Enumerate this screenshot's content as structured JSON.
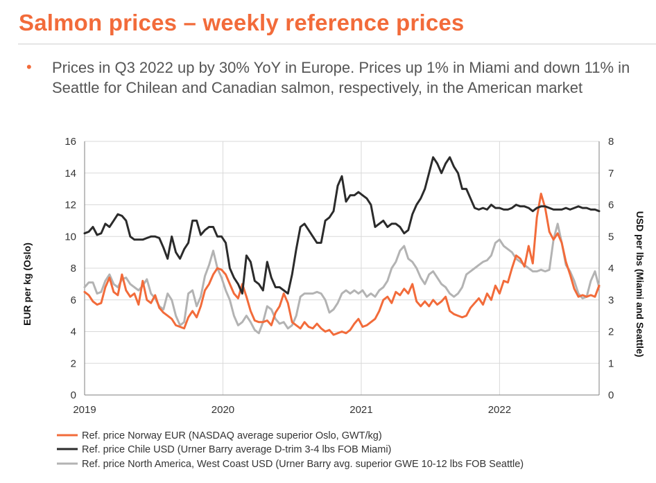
{
  "title": "Salmon prices – weekly reference prices",
  "bullet": "Prices in Q3 2022 up by 30% YoY in Europe. Prices up 1% in Miami and down 11% in Seattle for Chilean and Canadian salmon, respectively, in the American market",
  "colors": {
    "accent": "#f26b3a",
    "text": "#555555"
  },
  "chart_data": {
    "type": "line",
    "xlabel": "",
    "ylabel": "EUR per kg (Oslo)",
    "y2label": "USD per lbs (Miami and Seattle)",
    "xlim": [
      2019.0,
      2022.72
    ],
    "ylim": [
      0,
      16
    ],
    "y2lim": [
      0,
      8
    ],
    "x_ticks": [
      2019,
      2020,
      2021,
      2022
    ],
    "y_ticks": [
      0,
      2,
      4,
      6,
      8,
      10,
      12,
      14,
      16
    ],
    "y2_ticks": [
      0,
      1,
      2,
      3,
      4,
      5,
      6,
      7,
      8
    ],
    "grid": true,
    "legend_position": "bottom",
    "series": [
      {
        "name": "Ref. price Norway EUR (NASDAQ average superior Oslo, GWT/kg)",
        "axis": "left",
        "color": "#f26b3a",
        "x": [
          2019.0,
          2019.03,
          2019.06,
          2019.09,
          2019.12,
          2019.15,
          2019.18,
          2019.21,
          2019.24,
          2019.27,
          2019.3,
          2019.33,
          2019.36,
          2019.39,
          2019.42,
          2019.45,
          2019.48,
          2019.51,
          2019.54,
          2019.57,
          2019.6,
          2019.63,
          2019.66,
          2019.69,
          2019.72,
          2019.75,
          2019.78,
          2019.81,
          2019.84,
          2019.87,
          2019.9,
          2019.93,
          2019.96,
          2019.99,
          2020.02,
          2020.05,
          2020.08,
          2020.11,
          2020.14,
          2020.17,
          2020.2,
          2020.23,
          2020.26,
          2020.29,
          2020.32,
          2020.35,
          2020.38,
          2020.41,
          2020.44,
          2020.47,
          2020.5,
          2020.53,
          2020.56,
          2020.59,
          2020.62,
          2020.65,
          2020.68,
          2020.71,
          2020.74,
          2020.77,
          2020.8,
          2020.83,
          2020.86,
          2020.89,
          2020.92,
          2020.95,
          2020.98,
          2021.01,
          2021.04,
          2021.07,
          2021.1,
          2021.13,
          2021.16,
          2021.19,
          2021.22,
          2021.25,
          2021.28,
          2021.31,
          2021.34,
          2021.37,
          2021.4,
          2021.43,
          2021.46,
          2021.49,
          2021.52,
          2021.55,
          2021.58,
          2021.61,
          2021.64,
          2021.67,
          2021.7,
          2021.73,
          2021.76,
          2021.79,
          2021.82,
          2021.85,
          2021.88,
          2021.91,
          2021.94,
          2021.97,
          2022.0,
          2022.03,
          2022.06,
          2022.09,
          2022.12,
          2022.15,
          2022.18,
          2022.21,
          2022.24,
          2022.27,
          2022.3,
          2022.33,
          2022.36,
          2022.39,
          2022.42,
          2022.45,
          2022.48,
          2022.51,
          2022.54,
          2022.57,
          2022.6,
          2022.63,
          2022.66,
          2022.69,
          2022.72
        ],
        "values": [
          6.5,
          6.3,
          5.9,
          5.7,
          5.8,
          6.8,
          7.4,
          6.5,
          6.3,
          7.6,
          6.6,
          6.2,
          6.4,
          5.7,
          7.2,
          6.0,
          5.8,
          6.3,
          5.5,
          5.2,
          5.0,
          4.8,
          4.4,
          4.3,
          4.2,
          4.9,
          5.3,
          4.9,
          5.6,
          6.6,
          7.0,
          7.6,
          8.0,
          7.9,
          7.6,
          7.0,
          6.4,
          6.1,
          7.0,
          6.2,
          5.3,
          4.7,
          4.6,
          4.6,
          4.7,
          4.4,
          5.2,
          5.6,
          6.4,
          5.8,
          4.6,
          4.4,
          4.2,
          4.6,
          4.3,
          4.2,
          4.5,
          4.2,
          4.0,
          4.1,
          3.8,
          3.9,
          4.0,
          3.9,
          4.1,
          4.5,
          4.8,
          4.3,
          4.4,
          4.6,
          4.8,
          5.3,
          6.0,
          6.2,
          5.8,
          6.5,
          6.3,
          6.7,
          6.4,
          7.0,
          5.9,
          5.6,
          5.9,
          5.6,
          6.0,
          5.7,
          5.9,
          6.2,
          5.3,
          5.1,
          5.0,
          4.9,
          5.0,
          5.5,
          5.8,
          6.1,
          5.7,
          6.4,
          6.0,
          6.9,
          6.4,
          7.2,
          7.1,
          8.0,
          8.8,
          8.6,
          8.1,
          9.4,
          8.3,
          11.2,
          12.7,
          11.8,
          10.3,
          9.8,
          10.2,
          9.6,
          8.4,
          7.6,
          6.7,
          6.2,
          6.3,
          6.2,
          6.3,
          6.2,
          6.9
        ]
      },
      {
        "name": "Ref. price Chile USD (Urner Barry average D-trim 3-4 lbs FOB Miami)",
        "axis": "right",
        "color": "#2b2b2b",
        "x": [
          2019.0,
          2019.03,
          2019.06,
          2019.09,
          2019.12,
          2019.15,
          2019.18,
          2019.21,
          2019.24,
          2019.27,
          2019.3,
          2019.33,
          2019.36,
          2019.39,
          2019.42,
          2019.45,
          2019.48,
          2019.51,
          2019.54,
          2019.57,
          2019.6,
          2019.63,
          2019.66,
          2019.69,
          2019.72,
          2019.75,
          2019.78,
          2019.81,
          2019.84,
          2019.87,
          2019.9,
          2019.93,
          2019.96,
          2019.99,
          2020.02,
          2020.05,
          2020.08,
          2020.11,
          2020.14,
          2020.17,
          2020.2,
          2020.23,
          2020.26,
          2020.29,
          2020.32,
          2020.35,
          2020.38,
          2020.41,
          2020.44,
          2020.47,
          2020.5,
          2020.53,
          2020.56,
          2020.59,
          2020.62,
          2020.65,
          2020.68,
          2020.71,
          2020.74,
          2020.77,
          2020.8,
          2020.83,
          2020.86,
          2020.89,
          2020.92,
          2020.95,
          2020.98,
          2021.01,
          2021.04,
          2021.07,
          2021.1,
          2021.13,
          2021.16,
          2021.19,
          2021.22,
          2021.25,
          2021.28,
          2021.31,
          2021.34,
          2021.37,
          2021.4,
          2021.43,
          2021.46,
          2021.49,
          2021.52,
          2021.55,
          2021.58,
          2021.61,
          2021.64,
          2021.67,
          2021.7,
          2021.73,
          2021.76,
          2021.79,
          2021.82,
          2021.85,
          2021.88,
          2021.91,
          2021.94,
          2021.97,
          2022.0,
          2022.03,
          2022.06,
          2022.09,
          2022.12,
          2022.15,
          2022.18,
          2022.21,
          2022.24,
          2022.27,
          2022.3,
          2022.33,
          2022.36,
          2022.39,
          2022.42,
          2022.45,
          2022.48,
          2022.51,
          2022.54,
          2022.57,
          2022.6,
          2022.63,
          2022.66,
          2022.69,
          2022.72
        ],
        "values": [
          5.1,
          5.15,
          5.3,
          5.05,
          5.1,
          5.4,
          5.3,
          5.5,
          5.7,
          5.65,
          5.5,
          5.0,
          4.9,
          4.9,
          4.9,
          4.95,
          5.0,
          5.0,
          4.95,
          4.65,
          4.3,
          5.0,
          4.5,
          4.3,
          4.6,
          4.8,
          5.5,
          5.5,
          5.05,
          5.2,
          5.3,
          5.3,
          5.0,
          5.0,
          4.8,
          4.0,
          3.7,
          3.5,
          3.2,
          4.4,
          4.2,
          3.6,
          3.5,
          3.3,
          4.2,
          3.7,
          3.4,
          3.4,
          3.3,
          3.2,
          3.8,
          4.6,
          5.3,
          5.4,
          5.2,
          5.0,
          4.8,
          4.8,
          5.5,
          5.6,
          5.8,
          6.6,
          6.9,
          6.1,
          6.3,
          6.3,
          6.4,
          6.3,
          6.2,
          6.0,
          5.3,
          5.4,
          5.5,
          5.3,
          5.4,
          5.4,
          5.3,
          5.1,
          5.2,
          5.7,
          6.0,
          6.2,
          6.5,
          7.0,
          7.5,
          7.3,
          7.0,
          7.3,
          7.5,
          7.2,
          7.0,
          6.5,
          6.5,
          6.2,
          5.9,
          5.85,
          5.9,
          5.85,
          6.0,
          5.9,
          5.9,
          5.85,
          5.85,
          5.9,
          6.0,
          5.95,
          5.95,
          5.9,
          5.8,
          5.9,
          5.95,
          5.95,
          5.9,
          5.85,
          5.85,
          5.85,
          5.9,
          5.85,
          5.9,
          5.95,
          5.9,
          5.9,
          5.85,
          5.85,
          5.8
        ],
        "chile_note": ""
      },
      {
        "name": "Ref. price North America, West Coast USD (Urner Barry avg. superior GWE 10-12 lbs FOB Seattle)",
        "axis": "right",
        "color": "#b3b3b3",
        "x": [
          2019.0,
          2019.03,
          2019.06,
          2019.09,
          2019.12,
          2019.15,
          2019.18,
          2019.21,
          2019.24,
          2019.27,
          2019.3,
          2019.33,
          2019.36,
          2019.39,
          2019.42,
          2019.45,
          2019.48,
          2019.51,
          2019.54,
          2019.57,
          2019.6,
          2019.63,
          2019.66,
          2019.69,
          2019.72,
          2019.75,
          2019.78,
          2019.81,
          2019.84,
          2019.87,
          2019.9,
          2019.93,
          2019.96,
          2019.99,
          2020.02,
          2020.05,
          2020.08,
          2020.11,
          2020.14,
          2020.17,
          2020.2,
          2020.23,
          2020.26,
          2020.29,
          2020.32,
          2020.35,
          2020.38,
          2020.41,
          2020.44,
          2020.47,
          2020.5,
          2020.53,
          2020.56,
          2020.59,
          2020.62,
          2020.65,
          2020.68,
          2020.71,
          2020.74,
          2020.77,
          2020.8,
          2020.83,
          2020.86,
          2020.89,
          2020.92,
          2020.95,
          2020.98,
          2021.01,
          2021.04,
          2021.07,
          2021.1,
          2021.13,
          2021.16,
          2021.19,
          2021.22,
          2021.25,
          2021.28,
          2021.31,
          2021.34,
          2021.37,
          2021.4,
          2021.43,
          2021.46,
          2021.49,
          2021.52,
          2021.55,
          2021.58,
          2021.61,
          2021.64,
          2021.67,
          2021.7,
          2021.73,
          2021.76,
          2021.79,
          2021.82,
          2021.85,
          2021.88,
          2021.91,
          2021.94,
          2021.97,
          2022.0,
          2022.03,
          2022.06,
          2022.09,
          2022.12,
          2022.15,
          2022.18,
          2022.21,
          2022.24,
          2022.27,
          2022.3,
          2022.33,
          2022.36,
          2022.39,
          2022.42,
          2022.45,
          2022.48,
          2022.51,
          2022.54,
          2022.57,
          2022.6,
          2022.63,
          2022.66,
          2022.69,
          2022.72
        ],
        "values": [
          3.4,
          3.55,
          3.55,
          3.2,
          3.25,
          3.6,
          3.8,
          3.5,
          3.4,
          3.65,
          3.7,
          3.5,
          3.4,
          3.3,
          3.45,
          3.65,
          3.2,
          3.05,
          2.8,
          2.7,
          3.2,
          3.0,
          2.5,
          2.2,
          2.3,
          3.2,
          3.3,
          2.8,
          3.1,
          3.75,
          4.1,
          4.55,
          4.0,
          3.7,
          3.3,
          3.0,
          2.5,
          2.2,
          2.3,
          2.5,
          2.3,
          2.05,
          1.95,
          2.3,
          2.8,
          2.7,
          2.4,
          2.25,
          2.3,
          2.1,
          2.2,
          2.5,
          3.1,
          3.2,
          3.2,
          3.2,
          3.25,
          3.2,
          3.0,
          2.6,
          2.7,
          2.9,
          3.2,
          3.3,
          3.2,
          3.3,
          3.2,
          3.3,
          3.1,
          3.2,
          3.1,
          3.3,
          3.4,
          3.6,
          4.0,
          4.2,
          4.55,
          4.7,
          4.3,
          4.2,
          4.0,
          3.7,
          3.5,
          3.8,
          3.9,
          3.7,
          3.5,
          3.4,
          3.2,
          3.1,
          3.2,
          3.4,
          3.8,
          3.9,
          4.0,
          4.1,
          4.2,
          4.25,
          4.4,
          4.8,
          4.9,
          4.7,
          4.6,
          4.5,
          4.3,
          4.2,
          4.1,
          4.0,
          3.9,
          3.9,
          3.95,
          3.9,
          3.95,
          4.9,
          5.4,
          4.8,
          4.1,
          3.9,
          3.6,
          3.2,
          3.05,
          3.1,
          3.6,
          3.9,
          3.4
        ]
      }
    ]
  }
}
